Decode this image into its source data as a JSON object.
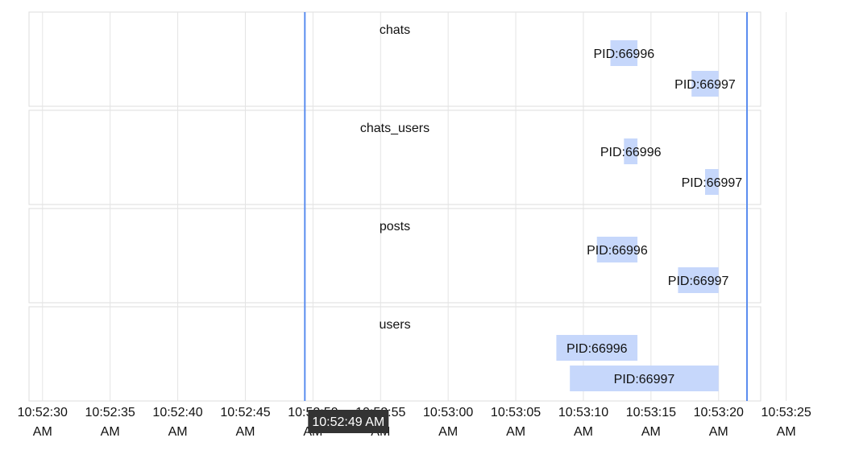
{
  "chart_data": {
    "type": "timeline",
    "lanes": [
      {
        "title": "chats",
        "bars": [
          {
            "label": "PID:66996",
            "start": "10:53:12",
            "end": "10:53:14"
          },
          {
            "label": "PID:66997",
            "start": "10:53:18",
            "end": "10:53:20"
          }
        ]
      },
      {
        "title": "chats_users",
        "bars": [
          {
            "label": "PID:66996",
            "start": "10:53:13",
            "end": "10:53:14"
          },
          {
            "label": "PID:66997",
            "start": "10:53:19",
            "end": "10:53:20"
          }
        ]
      },
      {
        "title": "posts",
        "bars": [
          {
            "label": "PID:66996",
            "start": "10:53:11",
            "end": "10:53:14"
          },
          {
            "label": "PID:66997",
            "start": "10:53:17",
            "end": "10:53:20"
          }
        ]
      },
      {
        "title": "users",
        "bars": [
          {
            "label": "PID:66996",
            "start": "10:53:08",
            "end": "10:53:14"
          },
          {
            "label": "PID:66997",
            "start": "10:53:09",
            "end": "10:53:20"
          }
        ]
      }
    ],
    "x_range": [
      "10:52:29",
      "10:53:28"
    ],
    "x_ticks": [
      {
        "time": "10:52:30",
        "label": "10:52:30",
        "ampm": "AM"
      },
      {
        "time": "10:52:35",
        "label": "10:52:35",
        "ampm": "AM"
      },
      {
        "time": "10:52:40",
        "label": "10:52:40",
        "ampm": "AM"
      },
      {
        "time": "10:52:45",
        "label": "10:52:45",
        "ampm": "AM"
      },
      {
        "time": "10:52:50",
        "label": "10:52:50",
        "ampm": "AM"
      },
      {
        "time": "10:52:55",
        "label": "10:52:55",
        "ampm": "AM"
      },
      {
        "time": "10:53:00",
        "label": "10:53:00",
        "ampm": "AM"
      },
      {
        "time": "10:53:05",
        "label": "10:53:05",
        "ampm": "AM"
      },
      {
        "time": "10:53:10",
        "label": "10:53:10",
        "ampm": "AM"
      },
      {
        "time": "10:53:15",
        "label": "10:53:15",
        "ampm": "AM"
      },
      {
        "time": "10:53:20",
        "label": "10:53:20",
        "ampm": "AM"
      },
      {
        "time": "10:53:25",
        "label": "10:53:25",
        "ampm": "AM"
      }
    ],
    "markers": [
      {
        "time": "10:52:49.4"
      },
      {
        "time": "10:53:22.1"
      }
    ],
    "cursor_label": "10:52:49 AM",
    "grid": true,
    "colors": {
      "bar": "#c6d7fb",
      "marker": "#5b8def",
      "cursor_box": "#333333",
      "grid": "#e4e4e4",
      "lane_border": "#dddddd"
    }
  }
}
